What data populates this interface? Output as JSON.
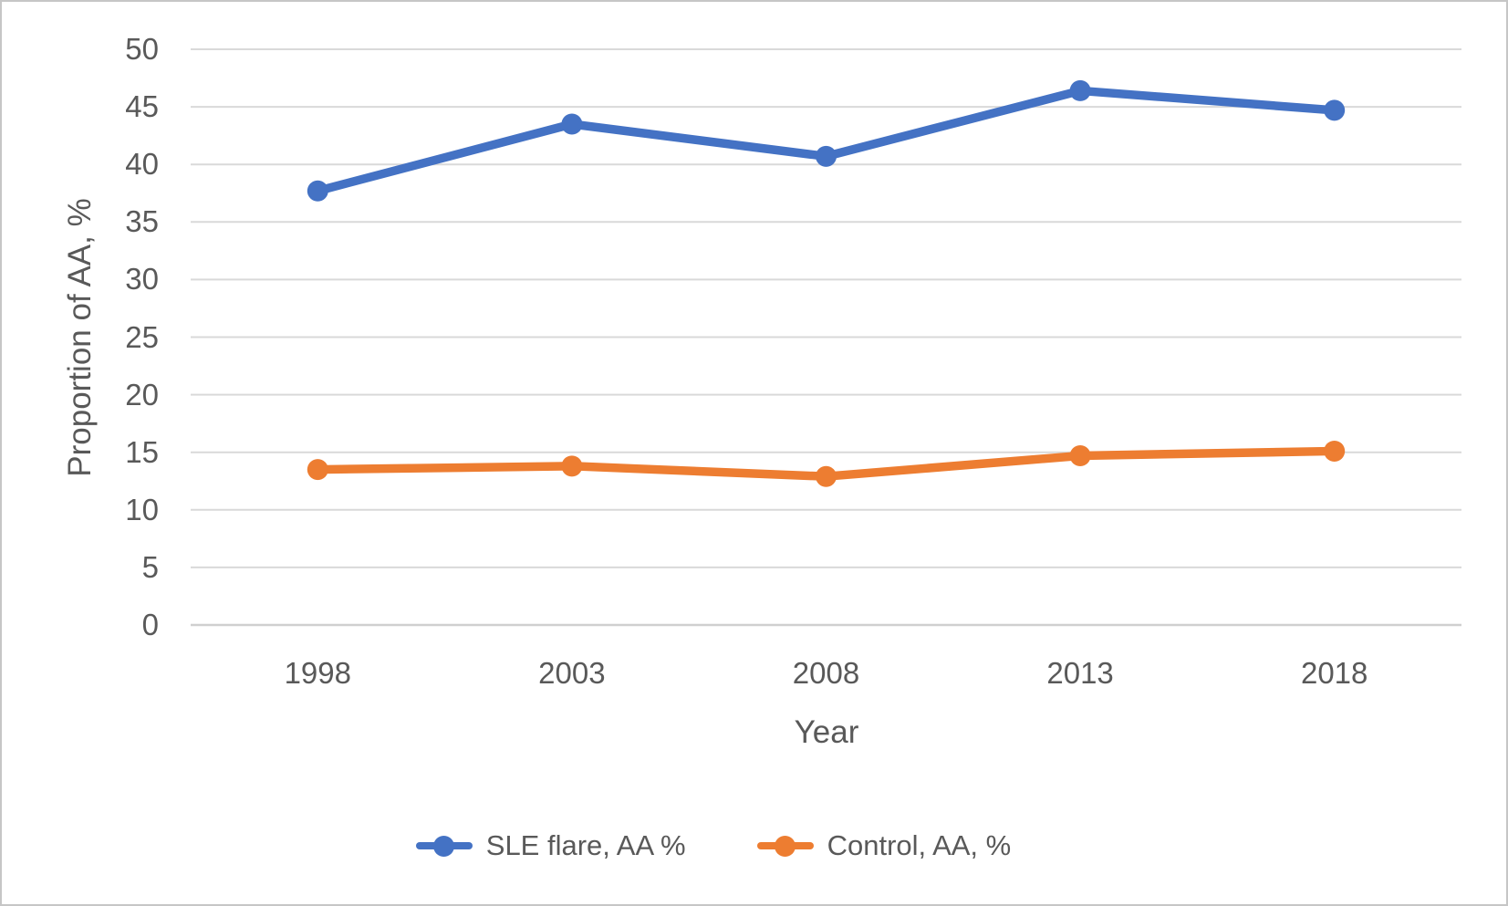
{
  "chart_data": {
    "type": "line",
    "title": "",
    "categories": [
      "1998",
      "2003",
      "2008",
      "2013",
      "2018"
    ],
    "series": [
      {
        "name": "SLE flare, AA %",
        "color": "#4472C4",
        "values": [
          37.7,
          43.5,
          40.7,
          46.4,
          44.7
        ]
      },
      {
        "name": "Control, AA, %",
        "color": "#ED7D31",
        "values": [
          13.5,
          13.8,
          12.9,
          14.7,
          15.1
        ]
      }
    ],
    "xlabel": "Year",
    "ylabel": "Proportion of AA, %",
    "ylim": [
      0,
      50
    ],
    "yticks": [
      0,
      5,
      10,
      15,
      20,
      25,
      30,
      35,
      40,
      45,
      50
    ],
    "grid": true,
    "legend_position": "bottom",
    "colors": {
      "grid": "#D9D9D9",
      "axis": "#CFCFCF",
      "text": "#595959",
      "border": "#C6C6C6",
      "background": "#FFFFFF"
    }
  }
}
